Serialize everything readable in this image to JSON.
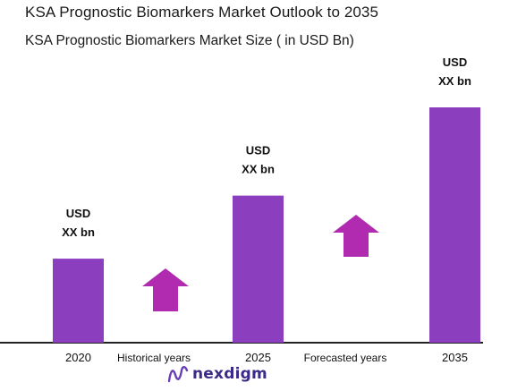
{
  "title": "KSA Prognostic Biomarkers Market Outlook to 2035",
  "subtitle": "KSA Prognostic Biomarkers Market Size  ( in USD Bn)",
  "chart_data": {
    "type": "bar",
    "categories": [
      "2020",
      "2025",
      "2035"
    ],
    "values": [
      1,
      1.75,
      2.8
    ],
    "data_labels": [
      [
        "USD",
        "XX bn"
      ],
      [
        "USD",
        "XX bn"
      ],
      [
        "USD",
        "XX bn"
      ]
    ],
    "section_labels": [
      "Historical years",
      "Forecasted years"
    ],
    "bar_color": "#8b3fbf",
    "arrow_color": "#b02bb0",
    "grid": false,
    "legend": "none"
  },
  "logo": {
    "text": "nexdigm",
    "color": "#3b2a86",
    "icon": "nexdigm-logo-icon"
  }
}
